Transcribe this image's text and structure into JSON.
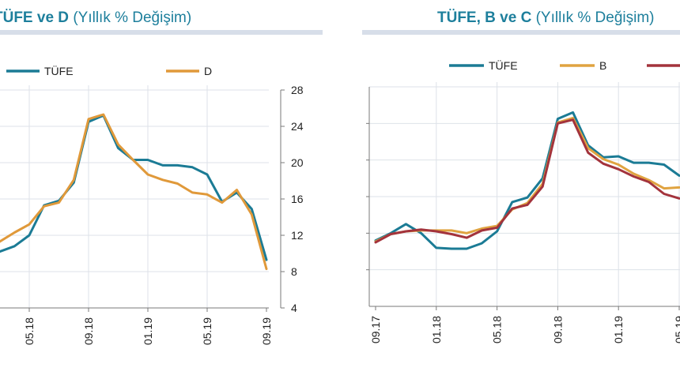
{
  "colors": {
    "title": "#1d7f9c",
    "tufe": "#1b7b95",
    "d": "#e0993a",
    "b": "#e0a340",
    "c": "#a3333c",
    "grid": "#dde2e8",
    "axis": "#7a7a7a"
  },
  "chart_data": [
    {
      "type": "line",
      "title_bold": "TÜFE ve D",
      "title_sub": "(Yıllık % Değişim)",
      "ylim": [
        4,
        28
      ],
      "yticks": [
        "28",
        "24",
        "20",
        "16",
        "12",
        "8",
        "4"
      ],
      "x_tick_labels": [
        "05.18",
        "09.18",
        "01.19",
        "05.19",
        "09.19"
      ],
      "legend": [
        "TÜFE",
        "D"
      ],
      "series": [
        {
          "name": "TÜFE",
          "values": [
            10.3,
            10.2,
            10.8,
            12.0,
            15.3,
            15.8,
            17.8,
            24.5,
            25.2,
            21.6,
            20.3,
            20.3,
            19.7,
            19.7,
            19.5,
            18.7,
            15.7,
            16.7,
            14.9,
            9.3
          ]
        },
        {
          "name": "D",
          "values": [
            11.3,
            11.3,
            12.3,
            13.2,
            15.2,
            15.6,
            18.1,
            24.8,
            25.3,
            22.0,
            20.3,
            18.7,
            18.1,
            17.7,
            16.7,
            16.5,
            15.6,
            17.0,
            14.3,
            8.3
          ]
        }
      ]
    },
    {
      "type": "line",
      "title_bold": "TÜFE, B ve C",
      "title_sub": "(Yıllık % Değişim)",
      "ylim": [
        4,
        28
      ],
      "yticks": [
        "24",
        "20",
        "16",
        "12",
        "8"
      ],
      "x_tick_labels": [
        "09.17",
        "01.18",
        "05.18",
        "09.18",
        "01.19",
        "05.19"
      ],
      "legend": [
        "TÜFE",
        "B",
        "C"
      ],
      "series": [
        {
          "name": "TÜFE",
          "values": [
            11.2,
            12.0,
            13.0,
            12.0,
            10.4,
            10.3,
            10.3,
            10.9,
            12.2,
            15.4,
            15.9,
            18.0,
            24.5,
            25.2,
            21.6,
            20.3,
            20.4,
            19.7,
            19.7,
            19.5,
            18.3
          ]
        },
        {
          "name": "B",
          "values": [
            11.1,
            11.9,
            12.2,
            12.3,
            12.3,
            12.3,
            12.0,
            12.5,
            12.8,
            14.6,
            15.3,
            17.4,
            24.1,
            24.6,
            21.3,
            20.1,
            19.5,
            18.5,
            17.8,
            16.9,
            17.0
          ]
        },
        {
          "name": "C",
          "values": [
            11.0,
            11.9,
            12.2,
            12.4,
            12.2,
            11.9,
            11.5,
            12.3,
            12.6,
            14.7,
            15.1,
            17.1,
            24.0,
            24.4,
            20.8,
            19.6,
            19.0,
            18.2,
            17.6,
            16.3,
            15.8
          ]
        }
      ]
    }
  ]
}
